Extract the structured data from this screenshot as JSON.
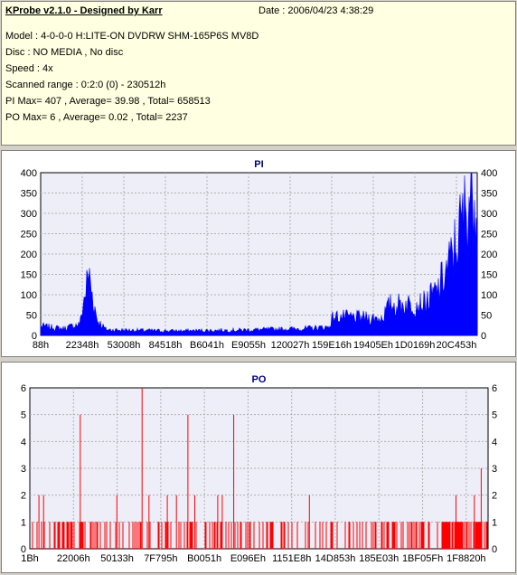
{
  "header": {
    "app_title": "KProbe v2.1.0 - Designed by Karr",
    "date": "Date : 2006/04/23 4:38:29",
    "model": "Model : 4-0-0-0 H:LITE-ON DVDRW SHM-165P6S MV8D",
    "disc": "Disc : NO MEDIA , No disc",
    "speed": "Speed : 4x",
    "scanned": "Scanned range : 0:2:0 (0) - 230512h",
    "pi_summary": "PI Max= 407 , Average= 39.98 , Total= 658513",
    "po_summary": "PO Max= 6 , Average= 0.02 , Total= 2237"
  },
  "colors": {
    "pi": "#0000ff",
    "po": "#ff0000",
    "plot_bg": "#eeeef8",
    "grid": "#b0b0b0"
  },
  "chart_data": [
    {
      "type": "area",
      "title": "PI",
      "ylim": [
        0,
        400
      ],
      "yticks": [
        0,
        50,
        100,
        150,
        200,
        250,
        300,
        350,
        400
      ],
      "xticklabels": [
        "88h",
        "22348h",
        "53008h",
        "84518h",
        "B6041h",
        "E9055h",
        "120027h",
        "159E16h",
        "19405Eh",
        "1D0169h",
        "20C453h"
      ],
      "grid": true,
      "max": 407,
      "series_profile": [
        {
          "x": 0.0,
          "y": 25
        },
        {
          "x": 0.05,
          "y": 18
        },
        {
          "x": 0.09,
          "y": 30
        },
        {
          "x": 0.1,
          "y": 100
        },
        {
          "x": 0.11,
          "y": 165
        },
        {
          "x": 0.12,
          "y": 95
        },
        {
          "x": 0.13,
          "y": 40
        },
        {
          "x": 0.15,
          "y": 15
        },
        {
          "x": 0.3,
          "y": 12
        },
        {
          "x": 0.45,
          "y": 14
        },
        {
          "x": 0.6,
          "y": 18
        },
        {
          "x": 0.66,
          "y": 22
        },
        {
          "x": 0.67,
          "y": 50
        },
        {
          "x": 0.78,
          "y": 45
        },
        {
          "x": 0.8,
          "y": 80
        },
        {
          "x": 0.88,
          "y": 85
        },
        {
          "x": 0.91,
          "y": 120
        },
        {
          "x": 0.94,
          "y": 200
        },
        {
          "x": 0.96,
          "y": 280
        },
        {
          "x": 0.98,
          "y": 360
        },
        {
          "x": 0.99,
          "y": 407
        },
        {
          "x": 1.0,
          "y": 370
        }
      ]
    },
    {
      "type": "bar",
      "title": "PO",
      "ylim": [
        0,
        6
      ],
      "yticks": [
        0,
        1,
        2,
        3,
        4,
        5,
        6
      ],
      "xticklabels": [
        "1Bh",
        "22006h",
        "50133h",
        "7F795h",
        "B0051h",
        "E096Eh",
        "1151E8h",
        "14D853h",
        "185E03h",
        "1BF05Fh",
        "1F8820h"
      ],
      "grid": true,
      "max": 6,
      "spikes": [
        {
          "x": 0.11,
          "y": 5
        },
        {
          "x": 0.245,
          "y": 6
        },
        {
          "x": 0.345,
          "y": 5
        },
        {
          "x": 0.445,
          "y": 5
        },
        {
          "x": 0.02,
          "y": 2
        },
        {
          "x": 0.03,
          "y": 2
        },
        {
          "x": 0.19,
          "y": 2
        },
        {
          "x": 0.26,
          "y": 2
        },
        {
          "x": 0.3,
          "y": 2
        },
        {
          "x": 0.32,
          "y": 2
        },
        {
          "x": 0.36,
          "y": 2
        },
        {
          "x": 0.41,
          "y": 2
        },
        {
          "x": 0.42,
          "y": 2
        },
        {
          "x": 0.61,
          "y": 2
        },
        {
          "x": 0.93,
          "y": 2
        },
        {
          "x": 0.97,
          "y": 2
        },
        {
          "x": 0.985,
          "y": 3
        }
      ]
    }
  ]
}
